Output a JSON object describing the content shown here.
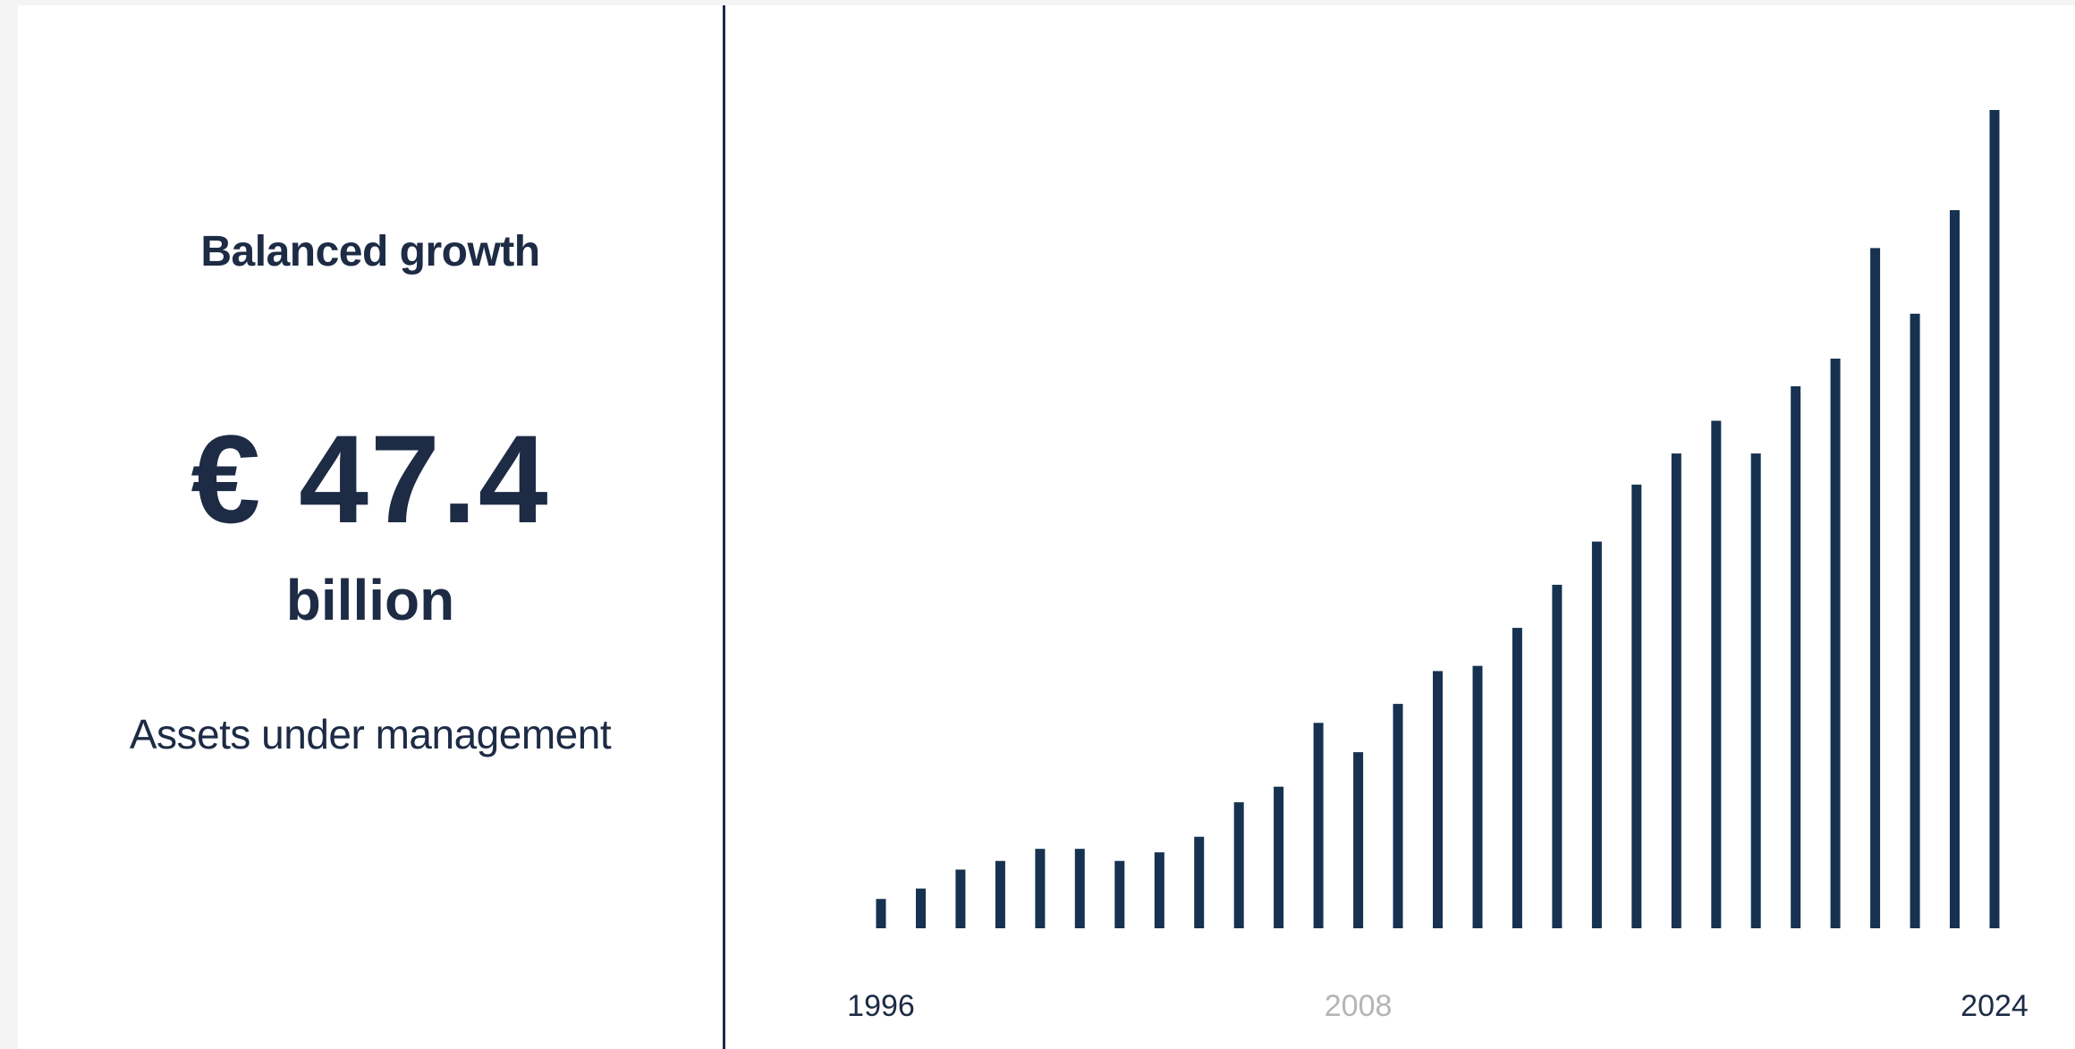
{
  "left_panel": {
    "heading": "Balanced growth",
    "kpi_value": "€ 47.4",
    "kpi_unit": "billion",
    "kpi_label": "Assets under management"
  },
  "colors": {
    "bar": "#163250",
    "text": "#1d2b45",
    "muted_tick": "#b5b5b5",
    "background": "#ffffff",
    "page": "#f4f4f4"
  },
  "chart_data": {
    "type": "bar",
    "categories": [
      "1996",
      "1997",
      "1998",
      "1999",
      "2000",
      "2001",
      "2002",
      "2003",
      "2004",
      "2005",
      "2006",
      "2007",
      "2008",
      "2009",
      "2010",
      "2011",
      "2012",
      "2013",
      "2014",
      "2015",
      "2016",
      "2017",
      "2018",
      "2019",
      "2020",
      "2021",
      "2022",
      "2023",
      "2024"
    ],
    "values": [
      1.7,
      2.3,
      3.4,
      3.9,
      4.6,
      4.6,
      3.9,
      4.4,
      5.3,
      7.3,
      8.2,
      11.9,
      10.2,
      13.0,
      14.9,
      15.2,
      17.4,
      19.9,
      22.4,
      25.7,
      27.5,
      29.4,
      27.5,
      31.4,
      33.0,
      39.4,
      35.6,
      41.6,
      47.4
    ],
    "tick_labels": [
      "1996",
      "2008",
      "2024"
    ],
    "highlight_tick": "2008",
    "ylim": [
      0,
      47.4
    ]
  }
}
